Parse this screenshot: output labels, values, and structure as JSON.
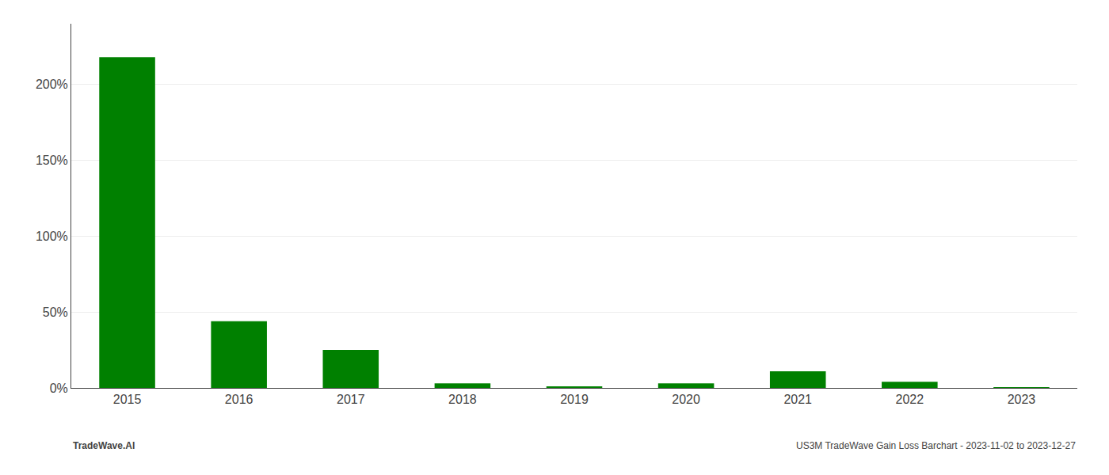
{
  "chart_data": {
    "type": "bar",
    "categories": [
      "2015",
      "2016",
      "2017",
      "2018",
      "2019",
      "2020",
      "2021",
      "2022",
      "2023"
    ],
    "values": [
      2.18,
      0.44,
      0.25,
      0.03,
      0.01,
      0.03,
      0.11,
      0.04,
      0.005
    ],
    "color": "#008000",
    "ylim": [
      0,
      2.4
    ],
    "yticks": [
      {
        "value": 0.0,
        "label": "0%"
      },
      {
        "value": 0.5,
        "label": "50%"
      },
      {
        "value": 1.0,
        "label": "100%"
      },
      {
        "value": 1.5,
        "label": "150%"
      },
      {
        "value": 2.0,
        "label": "200%"
      }
    ],
    "grid": true,
    "annotations": [
      "TradeWave.AI",
      "US3M TradeWave Gain Loss Barchart - 2023-11-02 to 2023-12-27"
    ]
  }
}
